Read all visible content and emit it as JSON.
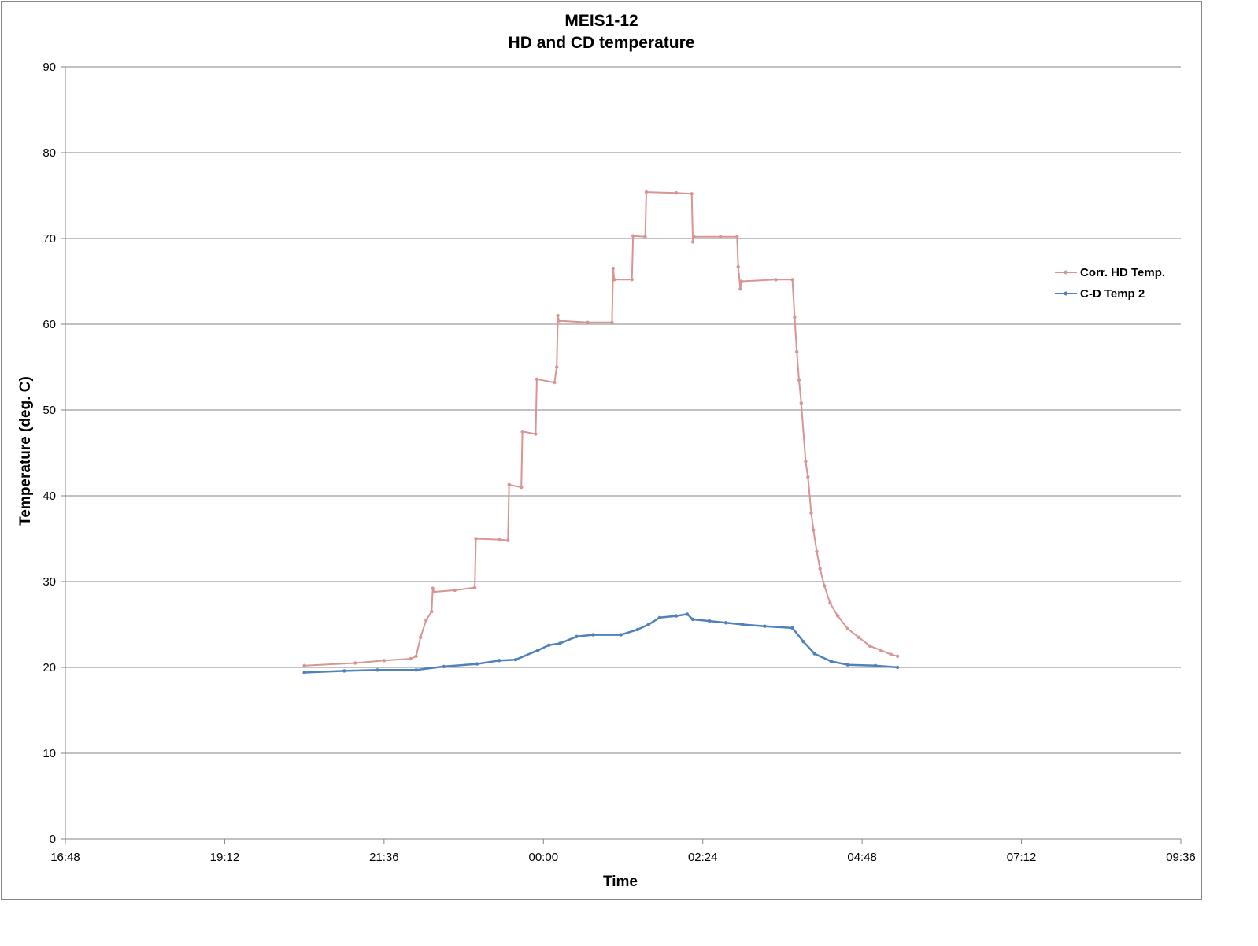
{
  "chart_data": {
    "type": "line",
    "title": "MEIS1-12",
    "subtitle": "HD and CD temperature",
    "xlabel": "Time",
    "ylabel": "Temperature (deg. C)",
    "x_ticks": [
      "16:48",
      "19:12",
      "21:36",
      "00:00",
      "02:24",
      "04:48",
      "07:12",
      "09:36"
    ],
    "y_ticks": [
      "0",
      "10",
      "20",
      "30",
      "40",
      "50",
      "60",
      "70",
      "80",
      "90"
    ],
    "xlim": [
      "16:48",
      "09:36 (next day)"
    ],
    "ylim": [
      0,
      90
    ],
    "grid": "horizontal",
    "legend": "right",
    "series": [
      {
        "name": "Corr. HD Temp.",
        "color": "#d99594",
        "points": [
          [
            "20:24",
            20.2
          ],
          [
            "21:10",
            20.5
          ],
          [
            "21:36",
            20.8
          ],
          [
            "22:00",
            21.0
          ],
          [
            "22:05",
            21.3
          ],
          [
            "22:09",
            23.5
          ],
          [
            "22:14",
            25.5
          ],
          [
            "22:19",
            26.5
          ],
          [
            "22:20",
            29.2
          ],
          [
            "22:21",
            28.8
          ],
          [
            "22:40",
            29.0
          ],
          [
            "22:58",
            29.3
          ],
          [
            "22:59",
            35.0
          ],
          [
            "23:20",
            34.9
          ],
          [
            "23:28",
            34.8
          ],
          [
            "23:29",
            41.3
          ],
          [
            "23:40",
            41.0
          ],
          [
            "23:41",
            47.5
          ],
          [
            "23:53",
            47.2
          ],
          [
            "23:54",
            53.6
          ],
          [
            "24:10",
            53.2
          ],
          [
            "24:12",
            55.0
          ],
          [
            "24:13",
            61.0
          ],
          [
            "24:14",
            60.4
          ],
          [
            "24:40",
            60.2
          ],
          [
            "25:02",
            60.2
          ],
          [
            "25:03",
            66.5
          ],
          [
            "25:04",
            65.2
          ],
          [
            "25:20",
            65.2
          ],
          [
            "25:21",
            70.3
          ],
          [
            "25:32",
            70.2
          ],
          [
            "25:33",
            75.4
          ],
          [
            "26:00",
            75.3
          ],
          [
            "26:14",
            75.2
          ],
          [
            "26:15",
            69.6
          ],
          [
            "26:16",
            70.2
          ],
          [
            "26:40",
            70.2
          ],
          [
            "26:55",
            70.2
          ],
          [
            "26:56",
            66.7
          ],
          [
            "26:58",
            64.1
          ],
          [
            "26:59",
            65.0
          ],
          [
            "27:30",
            65.2
          ],
          [
            "27:45",
            65.2
          ],
          [
            "27:47",
            60.8
          ],
          [
            "27:49",
            56.8
          ],
          [
            "27:51",
            53.5
          ],
          [
            "27:53",
            50.8
          ],
          [
            "27:57",
            44.0
          ],
          [
            "27:59",
            42.2
          ],
          [
            "28:02",
            38.0
          ],
          [
            "28:04",
            36.0
          ],
          [
            "28:07",
            33.5
          ],
          [
            "28:10",
            31.5
          ],
          [
            "28:14",
            29.5
          ],
          [
            "28:19",
            27.5
          ],
          [
            "28:26",
            26.0
          ],
          [
            "28:35",
            24.5
          ],
          [
            "28:45",
            23.5
          ],
          [
            "28:55",
            22.5
          ],
          [
            "29:05",
            22.0
          ],
          [
            "29:14",
            21.5
          ],
          [
            "29:20",
            21.3
          ]
        ]
      },
      {
        "name": "C-D Temp 2",
        "color": "#4f81bd",
        "points": [
          [
            "20:24",
            19.4
          ],
          [
            "21:00",
            19.6
          ],
          [
            "21:30",
            19.7
          ],
          [
            "22:05",
            19.7
          ],
          [
            "22:30",
            20.1
          ],
          [
            "23:00",
            20.4
          ],
          [
            "23:20",
            20.8
          ],
          [
            "23:35",
            20.9
          ],
          [
            "23:55",
            22.0
          ],
          [
            "24:05",
            22.6
          ],
          [
            "24:15",
            22.8
          ],
          [
            "24:30",
            23.6
          ],
          [
            "24:45",
            23.8
          ],
          [
            "25:10",
            23.8
          ],
          [
            "25:25",
            24.4
          ],
          [
            "25:35",
            25.0
          ],
          [
            "25:45",
            25.8
          ],
          [
            "26:00",
            26.0
          ],
          [
            "26:10",
            26.2
          ],
          [
            "26:15",
            25.6
          ],
          [
            "26:30",
            25.4
          ],
          [
            "26:45",
            25.2
          ],
          [
            "27:00",
            25.0
          ],
          [
            "27:20",
            24.8
          ],
          [
            "27:45",
            24.6
          ],
          [
            "27:55",
            23.0
          ],
          [
            "28:05",
            21.6
          ],
          [
            "28:20",
            20.7
          ],
          [
            "28:35",
            20.3
          ],
          [
            "29:00",
            20.2
          ],
          [
            "29:20",
            20.0
          ]
        ]
      }
    ]
  }
}
